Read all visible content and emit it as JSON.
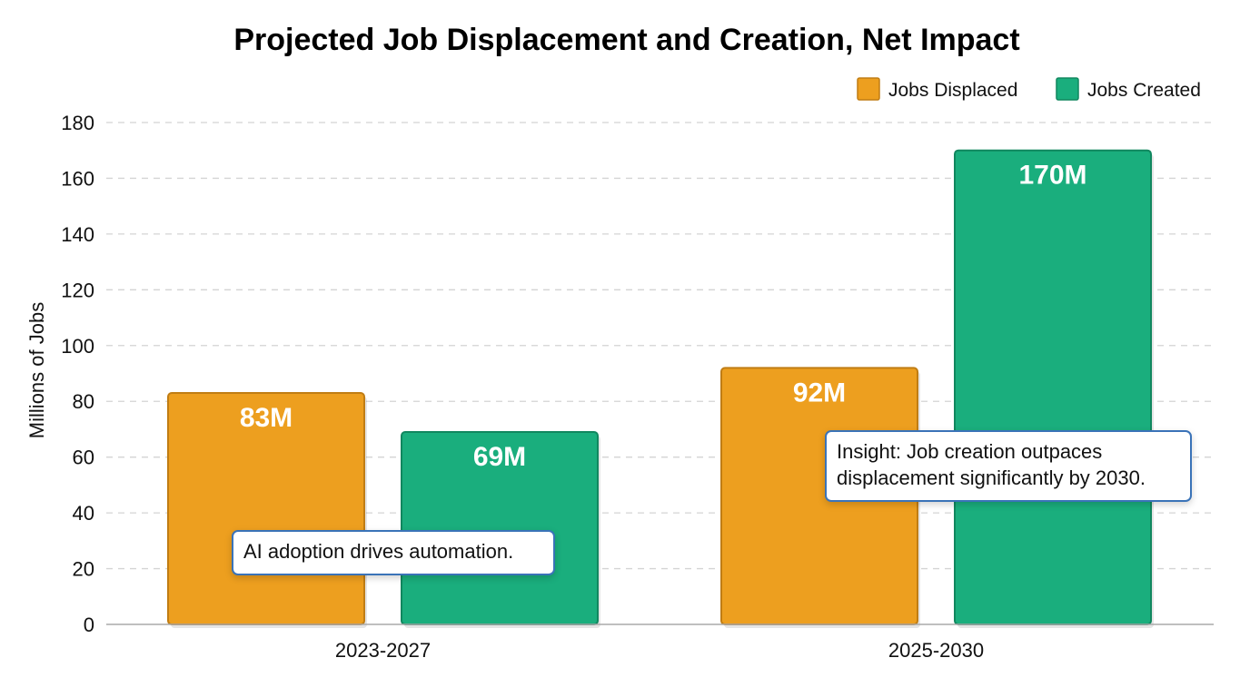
{
  "chart_data": {
    "type": "bar",
    "title": "Projected Job Displacement and Creation, Net Impact",
    "xlabel": "",
    "ylabel": "Millions of Jobs",
    "ylim": [
      0,
      180
    ],
    "yticks": [
      0,
      20,
      40,
      60,
      80,
      100,
      120,
      140,
      160,
      180
    ],
    "grid": true,
    "legend_position": "top-right",
    "categories": [
      "2023-2027",
      "2025-2030"
    ],
    "series": [
      {
        "name": "Jobs Displaced",
        "color": "#ed9f1f",
        "border": "#c07d14",
        "values": [
          83,
          92
        ],
        "labels": [
          "83M",
          "92M"
        ]
      },
      {
        "name": "Jobs Created",
        "color": "#1aae7d",
        "border": "#11875f",
        "values": [
          69,
          170
        ],
        "labels": [
          "69M",
          "170M"
        ]
      }
    ],
    "annotations": [
      {
        "text": "AI adoption drives automation.",
        "category": "2023-2027"
      },
      {
        "text": "Insight: Job creation outpaces\ndisplacement significantly by 2030.",
        "category": "2025-2030"
      }
    ]
  }
}
